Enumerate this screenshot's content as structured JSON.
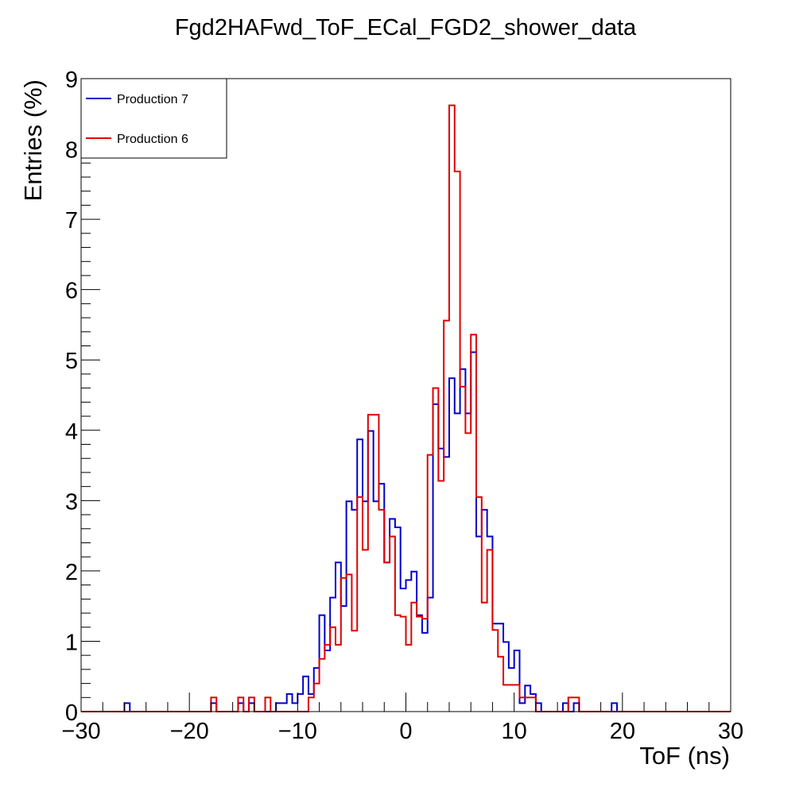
{
  "chart_data": {
    "type": "step",
    "title": "Fgd2HAFwd_ToF_ECal_FGD2_shower_data",
    "xlabel": "ToF (ns)",
    "ylabel": "Entries (%)",
    "xlim": [
      -30,
      30
    ],
    "ylim": [
      0,
      9
    ],
    "bin_width": 0.5,
    "x_ticks": [
      -30,
      -20,
      -10,
      0,
      10,
      20,
      30
    ],
    "x_tick_labels": [
      "−30",
      "−20",
      "−10",
      "0",
      "10",
      "20",
      "30"
    ],
    "y_ticks": [
      0,
      1,
      2,
      3,
      4,
      5,
      6,
      7,
      8,
      9
    ],
    "y_tick_labels": [
      "0",
      "1",
      "2",
      "3",
      "4",
      "5",
      "6",
      "7",
      "8",
      "9"
    ],
    "grid": false,
    "legend_position": "top-left",
    "series": [
      {
        "name": "Production 7",
        "color": "#0000cc",
        "bins": [
          [
            -26.0,
            0.12
          ],
          [
            -18.0,
            0.12
          ],
          [
            -15.5,
            0.12
          ],
          [
            -14.5,
            0.12
          ],
          [
            -12.0,
            0.12
          ],
          [
            -11.5,
            0.12
          ],
          [
            -11.0,
            0.25
          ],
          [
            -10.5,
            0.12
          ],
          [
            -10.0,
            0.25
          ],
          [
            -9.5,
            0.5
          ],
          [
            -9.0,
            0.25
          ],
          [
            -8.5,
            0.62
          ],
          [
            -8.0,
            1.37
          ],
          [
            -7.5,
            0.87
          ],
          [
            -7.0,
            1.62
          ],
          [
            -6.5,
            2.12
          ],
          [
            -6.0,
            1.5
          ],
          [
            -5.5,
            2.99
          ],
          [
            -5.0,
            2.87
          ],
          [
            -4.5,
            3.87
          ],
          [
            -4.0,
            2.99
          ],
          [
            -3.5,
            3.99
          ],
          [
            -3.0,
            2.99
          ],
          [
            -2.5,
            3.24
          ],
          [
            -2.0,
            2.12
          ],
          [
            -1.5,
            2.74
          ],
          [
            -1.0,
            2.62
          ],
          [
            -0.5,
            1.75
          ],
          [
            0.0,
            1.87
          ],
          [
            0.5,
            1.99
          ],
          [
            1.0,
            1.37
          ],
          [
            1.5,
            1.12
          ],
          [
            2.0,
            1.62
          ],
          [
            2.5,
            4.37
          ],
          [
            3.0,
            3.74
          ],
          [
            3.5,
            3.62
          ],
          [
            4.0,
            4.74
          ],
          [
            4.5,
            4.24
          ],
          [
            5.0,
            4.87
          ],
          [
            5.5,
            4.24
          ],
          [
            6.0,
            5.11
          ],
          [
            6.5,
            2.49
          ],
          [
            7.0,
            2.87
          ],
          [
            7.5,
            2.49
          ],
          [
            8.0,
            1.25
          ],
          [
            8.5,
            1.25
          ],
          [
            9.0,
            0.99
          ],
          [
            9.5,
            0.62
          ],
          [
            10.0,
            0.87
          ],
          [
            10.5,
            0.12
          ],
          [
            11.0,
            0.37
          ],
          [
            11.5,
            0.25
          ],
          [
            12.0,
            0.12
          ],
          [
            14.5,
            0.12
          ],
          [
            15.5,
            0.12
          ],
          [
            19.0,
            0.12
          ]
        ]
      },
      {
        "name": "Production 6",
        "color": "#e00000",
        "bins": [
          [
            -18.0,
            0.2
          ],
          [
            -15.5,
            0.2
          ],
          [
            -14.5,
            0.2
          ],
          [
            -13.0,
            0.2
          ],
          [
            -9.0,
            0.2
          ],
          [
            -8.5,
            0.4
          ],
          [
            -8.0,
            0.75
          ],
          [
            -7.5,
            0.95
          ],
          [
            -7.0,
            1.2
          ],
          [
            -6.5,
            0.95
          ],
          [
            -6.0,
            1.9
          ],
          [
            -5.5,
            1.95
          ],
          [
            -5.0,
            1.15
          ],
          [
            -4.5,
            3.05
          ],
          [
            -4.0,
            2.3
          ],
          [
            -3.5,
            4.22
          ],
          [
            -3.0,
            4.22
          ],
          [
            -2.5,
            2.87
          ],
          [
            -2.0,
            2.12
          ],
          [
            -1.5,
            2.49
          ],
          [
            -1.0,
            1.37
          ],
          [
            -0.5,
            1.35
          ],
          [
            0.0,
            0.95
          ],
          [
            0.5,
            1.55
          ],
          [
            1.0,
            1.35
          ],
          [
            1.5,
            1.32
          ],
          [
            2.0,
            3.65
          ],
          [
            2.5,
            4.6
          ],
          [
            3.0,
            3.28
          ],
          [
            3.5,
            5.56
          ],
          [
            4.0,
            8.62
          ],
          [
            4.5,
            7.68
          ],
          [
            5.0,
            4.62
          ],
          [
            5.5,
            3.96
          ],
          [
            6.0,
            5.36
          ],
          [
            6.5,
            3.05
          ],
          [
            7.0,
            1.55
          ],
          [
            7.5,
            2.3
          ],
          [
            8.0,
            1.16
          ],
          [
            8.5,
            0.78
          ],
          [
            9.0,
            0.38
          ],
          [
            9.5,
            0.38
          ],
          [
            10.0,
            0.38
          ],
          [
            10.5,
            0.2
          ],
          [
            11.0,
            0.2
          ],
          [
            11.5,
            0.2
          ],
          [
            15.0,
            0.2
          ],
          [
            15.5,
            0.2
          ]
        ]
      }
    ]
  }
}
